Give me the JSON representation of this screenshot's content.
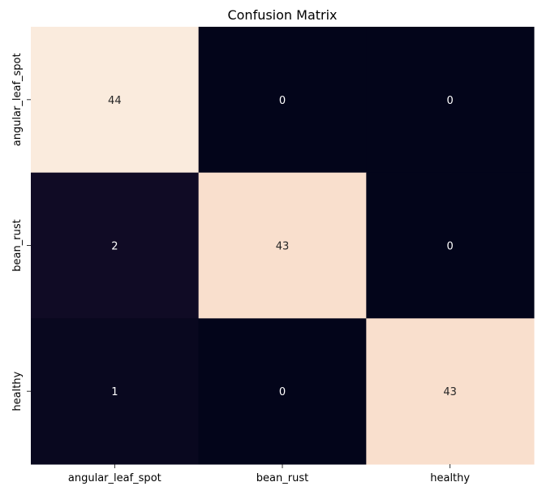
{
  "chart_data": {
    "type": "heatmap",
    "title": "Confusion Matrix",
    "row_labels": [
      "angular_leaf_spot",
      "bean_rust",
      "healthy"
    ],
    "col_labels": [
      "angular_leaf_spot",
      "bean_rust",
      "healthy"
    ],
    "values": [
      [
        44,
        0,
        0
      ],
      [
        2,
        43,
        0
      ],
      [
        1,
        0,
        43
      ]
    ],
    "value_range": [
      0,
      44
    ],
    "colormap": "rocket",
    "colorbar": false,
    "xlabel": "",
    "ylabel": ""
  }
}
